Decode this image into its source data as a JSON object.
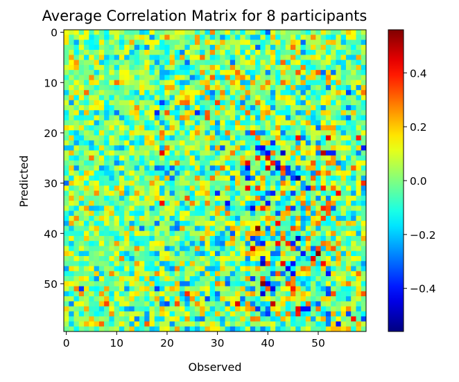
{
  "chart_data": {
    "type": "heatmap",
    "title": "Average Correlation Matrix for 8 participants",
    "xlabel": "Observed",
    "ylabel": "Predicted",
    "n_rows": 60,
    "n_cols": 60,
    "x_ticks": [
      0,
      10,
      20,
      30,
      40,
      50
    ],
    "y_ticks": [
      0,
      10,
      20,
      30,
      40,
      50
    ],
    "colorbar": {
      "colormap": "jet",
      "vmin": -0.56,
      "vmax": 0.56,
      "ticks": [
        -0.4,
        -0.2,
        0.0,
        0.2,
        0.4
      ],
      "tick_labels": [
        "−0.4",
        "−0.2",
        "0.0",
        "0.2",
        "0.4"
      ]
    },
    "notes": "60x60 matrix of correlation values, mostly in the range -0.2 to 0.2; stronger positive (red) and negative (blue) cells concentrate in rows 20-55, columns 38-50."
  }
}
